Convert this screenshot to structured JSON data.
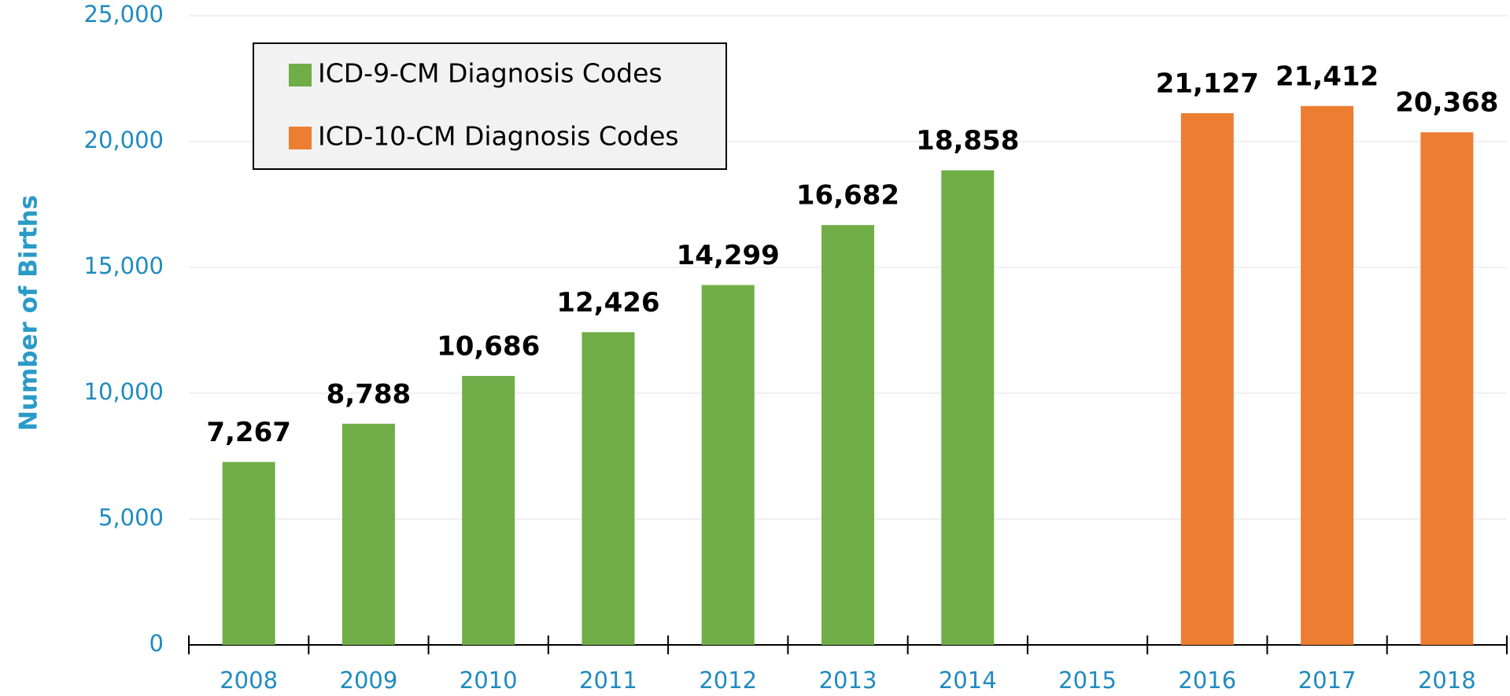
{
  "chart_data": {
    "type": "bar",
    "y_label": "Number of Births",
    "categories": [
      "2008",
      "2009",
      "2010",
      "2011",
      "2012",
      "2013",
      "2014",
      "2015",
      "2016",
      "2017",
      "2018"
    ],
    "series": [
      {
        "name": "ICD-9-CM Diagnosis Codes",
        "color": "#70ad47",
        "values": [
          7267,
          8788,
          10686,
          12426,
          14299,
          16682,
          18858,
          null,
          null,
          null,
          null
        ],
        "value_labels": [
          "7,267",
          "8,788",
          "10,686",
          "12,426",
          "14,299",
          "16,682",
          "18,858",
          null,
          null,
          null,
          null
        ]
      },
      {
        "name": "ICD-10-CM Diagnosis Codes",
        "color": "#ed7d31",
        "values": [
          null,
          null,
          null,
          null,
          null,
          null,
          null,
          null,
          21127,
          21412,
          20368
        ],
        "value_labels": [
          null,
          null,
          null,
          null,
          null,
          null,
          null,
          null,
          "21,127",
          "21,412",
          "20,368"
        ]
      }
    ],
    "ylim": [
      0,
      25000
    ],
    "yticks": [
      0,
      {
        "value": 5000,
        "label": "5,000"
      },
      {
        "value": 10000,
        "label": "10,000"
      },
      {
        "value": 15000,
        "label": "15,000"
      },
      {
        "value": 20000,
        "label": "20,000"
      },
      {
        "value": 25000,
        "label": "25,000"
      }
    ],
    "grid": true,
    "legend": "upper left"
  }
}
